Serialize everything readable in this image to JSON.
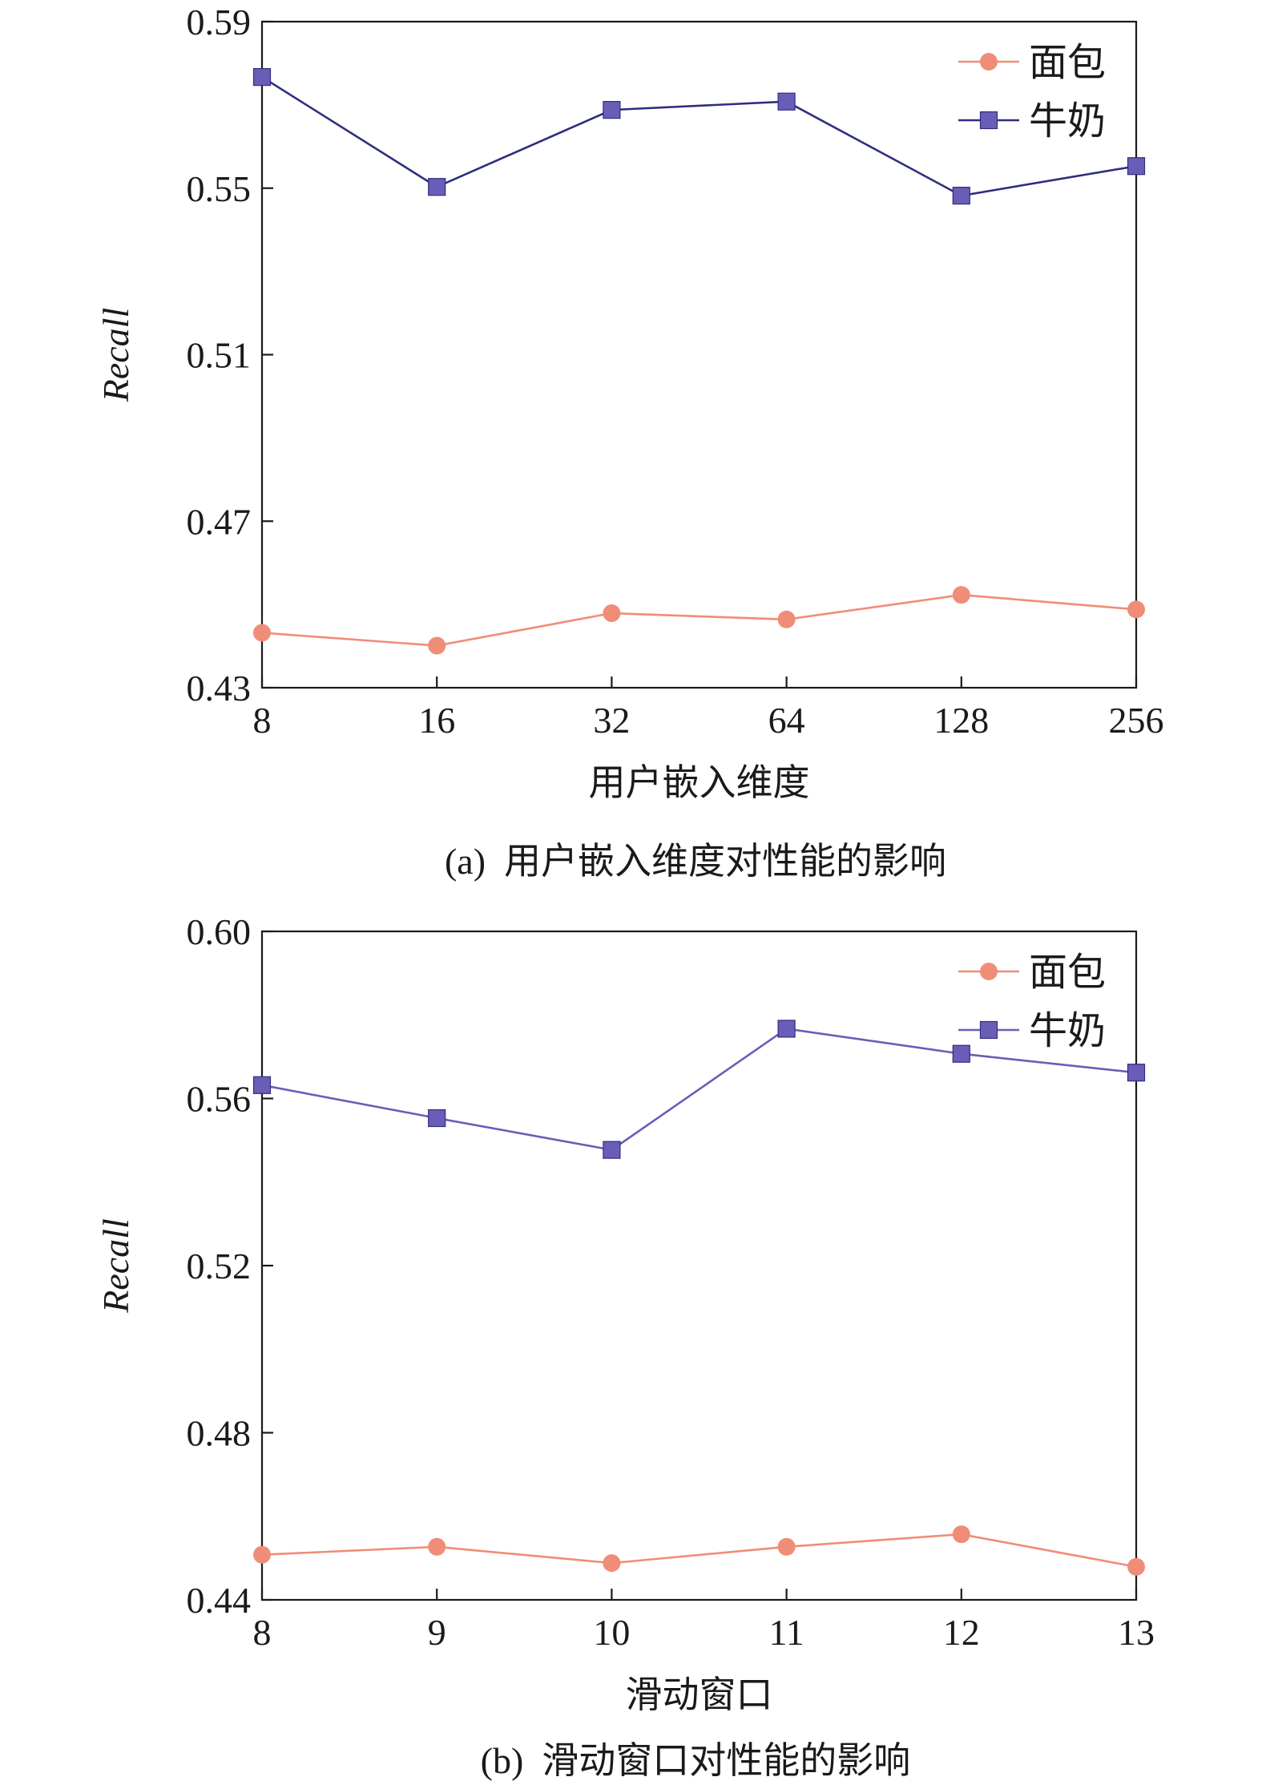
{
  "chart_data": [
    {
      "type": "line",
      "caption": "(a)  用户嵌入维度对性能的影响",
      "xlabel": "用户嵌入维度",
      "ylabel": "Recall",
      "categories": [
        "8",
        "16",
        "32",
        "64",
        "128",
        "256"
      ],
      "ylim": [
        0.43,
        0.59
      ],
      "yticks": [
        "0.43",
        "0.47",
        "0.51",
        "0.55",
        "0.59"
      ],
      "grid": false,
      "legend_position": "top-right",
      "series": [
        {
          "name": "面包",
          "marker": "circle",
          "color": "#f08d78",
          "values": [
            0.4432,
            0.4401,
            0.4479,
            0.4464,
            0.4523,
            0.4488
          ]
        },
        {
          "name": "牛奶",
          "marker": "square",
          "color": "#6a5db7",
          "line_color": "#2e2f7e",
          "values": [
            0.5767,
            0.5503,
            0.5688,
            0.5708,
            0.5482,
            0.5553
          ]
        }
      ]
    },
    {
      "type": "line",
      "caption": "(b)  滑动窗口对性能的影响",
      "xlabel": "滑动窗口",
      "ylabel": "Recall",
      "categories": [
        "8",
        "9",
        "10",
        "11",
        "12",
        "13"
      ],
      "ylim": [
        0.44,
        0.6
      ],
      "yticks": [
        "0.44",
        "0.48",
        "0.52",
        "0.56",
        "0.60"
      ],
      "grid": false,
      "legend_position": "top-right",
      "series": [
        {
          "name": "面包",
          "marker": "circle",
          "color": "#f08d78",
          "values": [
            0.4508,
            0.4527,
            0.4488,
            0.4527,
            0.4557,
            0.4479
          ]
        },
        {
          "name": "牛奶",
          "marker": "square",
          "color": "#6a5db7",
          "line_color": "#6a5db7",
          "values": [
            0.5632,
            0.5553,
            0.5477,
            0.5767,
            0.5707,
            0.5662
          ]
        }
      ]
    }
  ]
}
